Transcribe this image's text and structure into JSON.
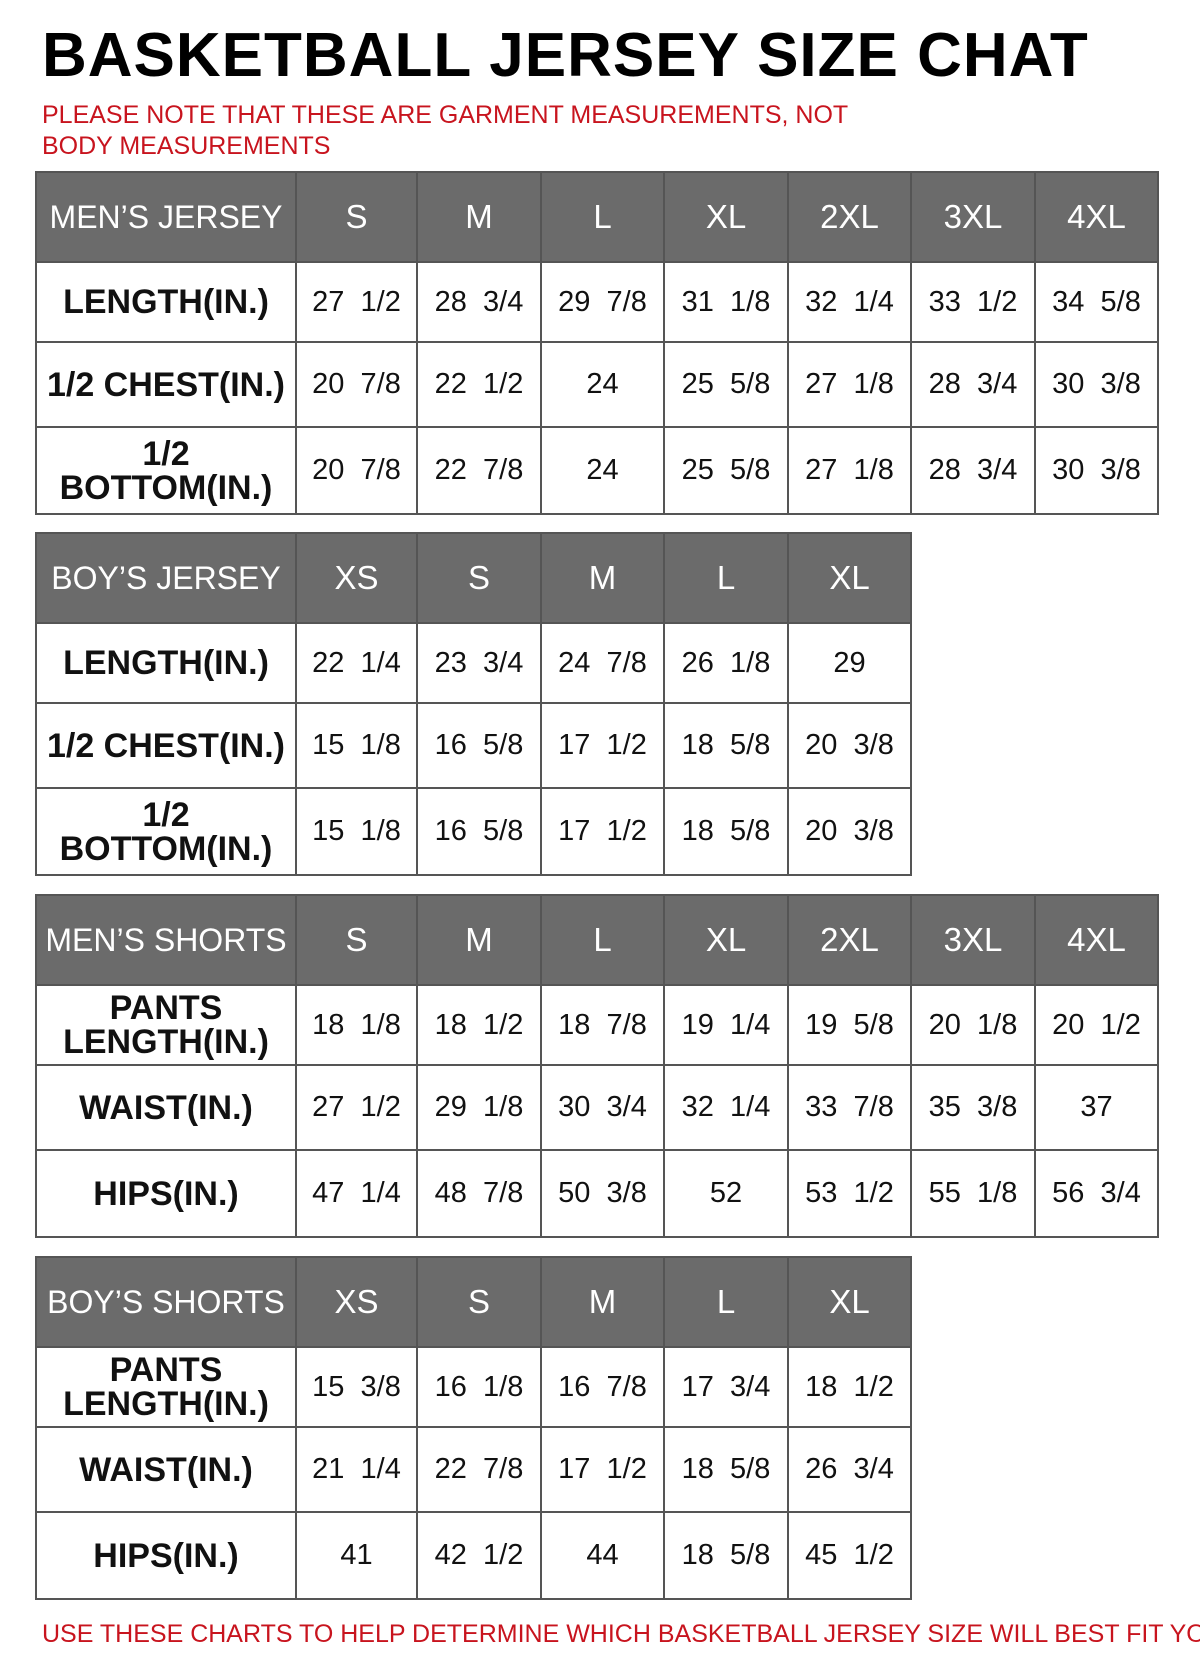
{
  "title": "BASKETBALL JERSEY SIZE CHAT",
  "note": "PLEASE NOTE THAT THESE ARE GARMENT MEASUREMENTS, NOT BODY MEASUREMENTS",
  "footer": "USE THESE CHARTS TO HELP DETERMINE WHICH BASKETBALL JERSEY SIZE WILL BEST FIT YOU.",
  "colors": {
    "header_bg": "#6b6b6b",
    "note_red": "#c8141e"
  },
  "tables": [
    {
      "heading": "MEN’S JERSEY",
      "sizes": [
        "S",
        "M",
        "L",
        "XL",
        "2XL",
        "3XL",
        "4XL"
      ],
      "rows": [
        {
          "label": "LENGTH(IN.)",
          "values": [
            "27  1/2",
            "28  3/4",
            "29  7/8",
            "31  1/8",
            "32  1/4",
            "33  1/2",
            "34  5/8"
          ]
        },
        {
          "label": "1/2  CHEST(IN.)",
          "values": [
            "20  7/8",
            "22  1/2",
            "24",
            "25  5/8",
            "27  1/8",
            "28  3/4",
            "30  3/8"
          ]
        },
        {
          "label": "1/2  BOTTOM(IN.)",
          "values": [
            "20  7/8",
            "22  7/8",
            "24",
            "25  5/8",
            "27  1/8",
            "28  3/4",
            "30  3/8"
          ]
        }
      ]
    },
    {
      "heading": "BOY’S JERSEY",
      "sizes": [
        "XS",
        "S",
        "M",
        "L",
        "XL"
      ],
      "rows": [
        {
          "label": "LENGTH(IN.)",
          "values": [
            "22  1/4",
            "23  3/4",
            "24  7/8",
            "26  1/8",
            "29"
          ]
        },
        {
          "label": "1/2  CHEST(IN.)",
          "values": [
            "15  1/8",
            "16  5/8",
            "17  1/2",
            "18  5/8",
            "20  3/8"
          ]
        },
        {
          "label": "1/2  BOTTOM(IN.)",
          "values": [
            "15  1/8",
            "16  5/8",
            "17  1/2",
            "18  5/8",
            "20  3/8"
          ]
        }
      ]
    },
    {
      "heading": "MEN’S SHORTS",
      "sizes": [
        "S",
        "M",
        "L",
        "XL",
        "2XL",
        "3XL",
        "4XL"
      ],
      "rows": [
        {
          "label": "PANTS LENGTH(IN.)",
          "values": [
            "18  1/8",
            "18  1/2",
            "18  7/8",
            "19  1/4",
            "19  5/8",
            "20  1/8",
            "20  1/2"
          ]
        },
        {
          "label": "WAIST(IN.)",
          "values": [
            "27  1/2",
            "29  1/8",
            "30  3/4",
            "32  1/4",
            "33  7/8",
            "35  3/8",
            "37"
          ]
        },
        {
          "label": "HIPS(IN.)",
          "values": [
            "47  1/4",
            "48  7/8",
            "50  3/8",
            "52",
            "53  1/2",
            "55  1/8",
            "56  3/4"
          ]
        }
      ]
    },
    {
      "heading": "BOY’S SHORTS",
      "sizes": [
        "XS",
        "S",
        "M",
        "L",
        "XL"
      ],
      "rows": [
        {
          "label": "PANTS LENGTH(IN.)",
          "values": [
            "15  3/8",
            "16  1/8",
            "16  7/8",
            "17  3/4",
            "18  1/2"
          ]
        },
        {
          "label": "WAIST(IN.)",
          "values": [
            "21  1/4",
            "22  7/8",
            "17  1/2",
            "18  5/8",
            "26  3/4"
          ]
        },
        {
          "label": "HIPS(IN.)",
          "values": [
            "41",
            "42  1/2",
            "44",
            "18  5/8",
            "45  1/2"
          ]
        }
      ]
    }
  ]
}
